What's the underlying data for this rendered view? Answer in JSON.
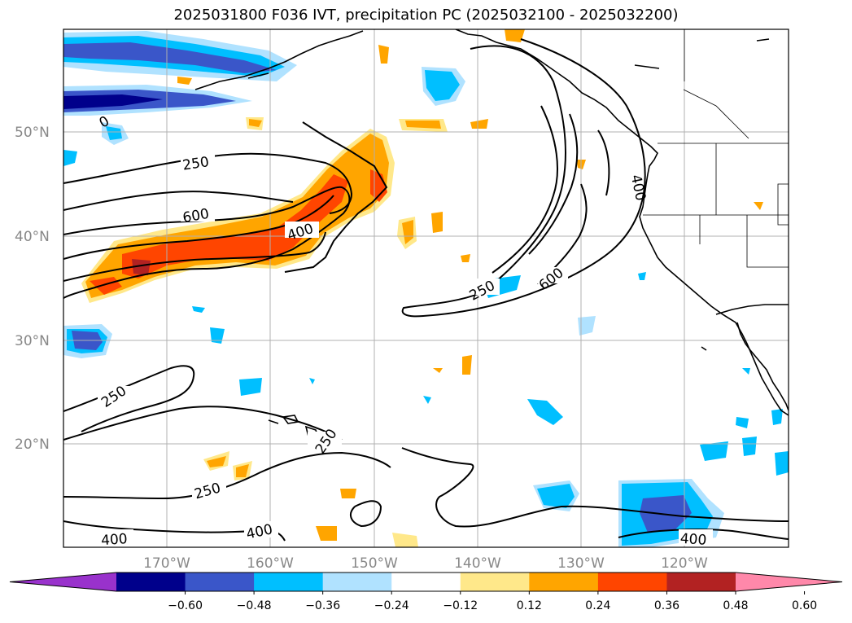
{
  "title": "2025031800 F036 IVT, precipitation PC (2025032100 - 2025032200)",
  "map": {
    "lat_labels": [
      "50°N",
      "40°N",
      "30°N",
      "20°N"
    ],
    "lon_labels": [
      "170°W",
      "160°W",
      "150°W",
      "140°W",
      "130°W",
      "120°W"
    ],
    "ivt_contour_labels": [
      "250",
      "600",
      "400",
      "0",
      "400",
      "250",
      "600",
      "250",
      "250",
      "250",
      "400",
      "400",
      "400"
    ]
  },
  "colorbar": {
    "ticks": [
      "−0.60",
      "−0.48",
      "−0.36",
      "−0.24",
      "−0.12",
      "0.12",
      "0.24",
      "0.36",
      "0.48",
      "0.60"
    ],
    "colors": [
      "#9932cc",
      "#00008b",
      "#3a56c9",
      "#00bfff",
      "#b0e2ff",
      "#ffffff",
      "#ffe88a",
      "#ffa500",
      "#ff4500",
      "#b22222",
      "#ff88aa"
    ]
  }
}
